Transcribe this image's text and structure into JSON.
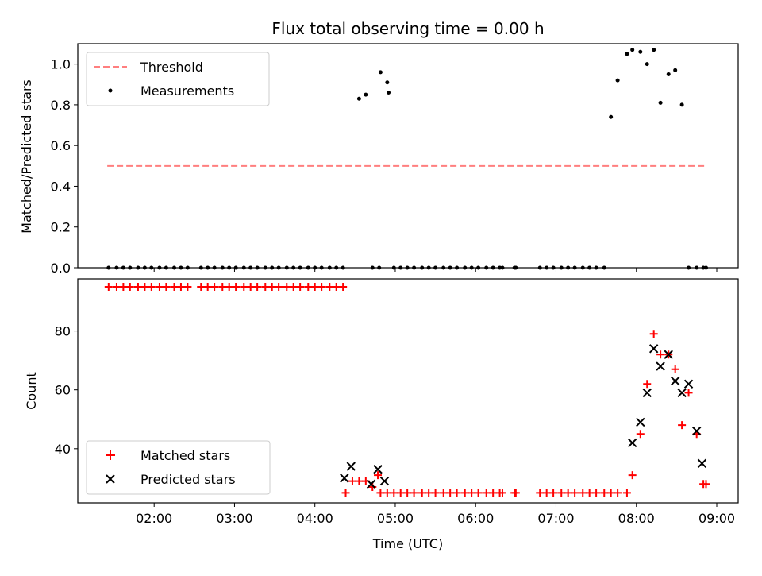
{
  "chart_data": [
    {
      "type": "scatter",
      "title": "Flux total observing time = 0.00 h",
      "xlabel": "",
      "ylabel": "Matched/Predicted stars",
      "xlim": [
        "01:03",
        "09:16"
      ],
      "ylim": [
        0,
        1.1
      ],
      "yticks": [
        0.0,
        0.2,
        0.4,
        0.6,
        0.8,
        1.0
      ],
      "ytick_labels": [
        "0.0",
        "0.2",
        "0.4",
        "0.6",
        "0.8",
        "1.0"
      ],
      "xticks": [
        "02:00",
        "03:00",
        "04:00",
        "05:00",
        "06:00",
        "07:00",
        "08:00",
        "09:00"
      ],
      "legend": {
        "position": "upper-left",
        "entries": [
          "Threshold",
          "Measurements"
        ]
      },
      "series": [
        {
          "name": "Threshold",
          "style": "dashed-line",
          "color": "#ff7f7f",
          "x": [
            "01:25",
            "08:51"
          ],
          "y": [
            0.5,
            0.5
          ]
        },
        {
          "name": "Measurements",
          "style": "dot",
          "color": "#000000",
          "x": [
            "01:26",
            "01:32",
            "01:37",
            "01:42",
            "01:48",
            "01:53",
            "01:58",
            "02:04",
            "02:09",
            "02:15",
            "02:20",
            "02:25",
            "02:35",
            "02:40",
            "02:45",
            "02:51",
            "02:56",
            "03:01",
            "03:07",
            "03:12",
            "03:17",
            "03:23",
            "03:28",
            "03:33",
            "03:39",
            "03:44",
            "03:49",
            "03:55",
            "04:00",
            "04:05",
            "04:11",
            "04:16",
            "04:21",
            "04:33",
            "04:38",
            "04:43",
            "04:48",
            "04:49",
            "04:54",
            "04:55",
            "04:59",
            "05:04",
            "05:09",
            "05:14",
            "05:20",
            "05:25",
            "05:30",
            "05:36",
            "05:41",
            "05:46",
            "05:52",
            "05:57",
            "06:02",
            "06:08",
            "06:13",
            "06:18",
            "06:20",
            "06:29",
            "06:30",
            "06:48",
            "06:53",
            "06:58",
            "07:04",
            "07:09",
            "07:14",
            "07:20",
            "07:25",
            "07:30",
            "07:36",
            "07:41",
            "07:46",
            "07:53",
            "07:57",
            "08:03",
            "08:08",
            "08:13",
            "08:18",
            "08:24",
            "08:29",
            "08:34",
            "08:39",
            "08:45",
            "08:50",
            "08:52"
          ],
          "y": [
            0,
            0,
            0,
            0,
            0,
            0,
            0,
            0,
            0,
            0,
            0,
            0,
            0,
            0,
            0,
            0,
            0,
            0,
            0,
            0,
            0,
            0,
            0,
            0,
            0,
            0,
            0,
            0,
            0,
            0,
            0,
            0,
            0,
            0.83,
            0.85,
            0,
            0,
            0.96,
            0.91,
            0.86,
            0,
            0,
            0,
            0,
            0,
            0,
            0,
            0,
            0,
            0,
            0,
            0,
            0,
            0,
            0,
            0,
            0,
            0,
            0,
            0,
            0,
            0,
            0,
            0,
            0,
            0,
            0,
            0,
            0,
            0.74,
            0.92,
            1.05,
            1.07,
            1.06,
            1.0,
            1.07,
            0.81,
            0.95,
            0.97,
            0.8,
            0,
            0,
            0,
            0
          ]
        }
      ]
    },
    {
      "type": "scatter",
      "title": "",
      "xlabel": "Time (UTC)",
      "ylabel": "Count",
      "xlim": [
        "01:03",
        "09:16"
      ],
      "ylim": [
        21.6,
        97.7
      ],
      "yticks": [
        40,
        60,
        80
      ],
      "ytick_labels": [
        "40",
        "60",
        "80"
      ],
      "xticks": [
        "02:00",
        "03:00",
        "04:00",
        "05:00",
        "06:00",
        "07:00",
        "08:00",
        "09:00"
      ],
      "legend": {
        "position": "lower-left",
        "entries": [
          "Matched stars",
          "Predicted stars"
        ]
      },
      "series": [
        {
          "name": "Matched stars",
          "style": "plus",
          "color": "#ff0000",
          "x": [
            "01:26",
            "01:32",
            "01:37",
            "01:42",
            "01:48",
            "01:53",
            "01:58",
            "02:04",
            "02:09",
            "02:15",
            "02:20",
            "02:25",
            "02:35",
            "02:40",
            "02:45",
            "02:51",
            "02:56",
            "03:01",
            "03:07",
            "03:12",
            "03:17",
            "03:23",
            "03:28",
            "03:33",
            "03:39",
            "03:44",
            "03:49",
            "03:55",
            "04:00",
            "04:05",
            "04:11",
            "04:16",
            "04:21",
            "04:23",
            "04:28",
            "04:33",
            "04:38",
            "04:43",
            "04:47",
            "04:49",
            "04:54",
            "04:59",
            "05:04",
            "05:09",
            "05:14",
            "05:20",
            "05:25",
            "05:30",
            "05:36",
            "05:41",
            "05:46",
            "05:52",
            "05:57",
            "06:02",
            "06:08",
            "06:13",
            "06:18",
            "06:20",
            "06:29",
            "06:30",
            "06:48",
            "06:53",
            "06:58",
            "07:04",
            "07:09",
            "07:14",
            "07:20",
            "07:25",
            "07:30",
            "07:36",
            "07:41",
            "07:46",
            "07:53",
            "07:57",
            "08:03",
            "08:08",
            "08:13",
            "08:18",
            "08:24",
            "08:29",
            "08:34",
            "08:39",
            "08:45",
            "08:50",
            "08:52"
          ],
          "y": [
            95,
            95,
            95,
            95,
            95,
            95,
            95,
            95,
            95,
            95,
            95,
            95,
            95,
            95,
            95,
            95,
            95,
            95,
            95,
            95,
            95,
            95,
            95,
            95,
            95,
            95,
            95,
            95,
            95,
            95,
            95,
            95,
            95,
            25,
            29,
            29,
            29,
            27,
            31,
            25,
            25,
            25,
            25,
            25,
            25,
            25,
            25,
            25,
            25,
            25,
            25,
            25,
            25,
            25,
            25,
            25,
            25,
            25,
            25,
            25,
            25,
            25,
            25,
            25,
            25,
            25,
            25,
            25,
            25,
            25,
            25,
            25,
            25,
            31,
            45,
            62,
            79,
            72,
            72,
            67,
            48,
            59,
            45,
            28,
            28
          ]
        },
        {
          "name": "Predicted stars",
          "style": "x",
          "color": "#000000",
          "x": [
            "04:22",
            "04:27",
            "04:42",
            "04:47",
            "04:52",
            "07:57",
            "08:03",
            "08:08",
            "08:13",
            "08:18",
            "08:24",
            "08:29",
            "08:34",
            "08:39",
            "08:45",
            "08:49"
          ],
          "y": [
            30,
            34,
            28,
            33,
            29,
            42,
            49,
            59,
            74,
            68,
            72,
            63,
            59,
            62,
            46,
            35
          ]
        }
      ]
    }
  ]
}
